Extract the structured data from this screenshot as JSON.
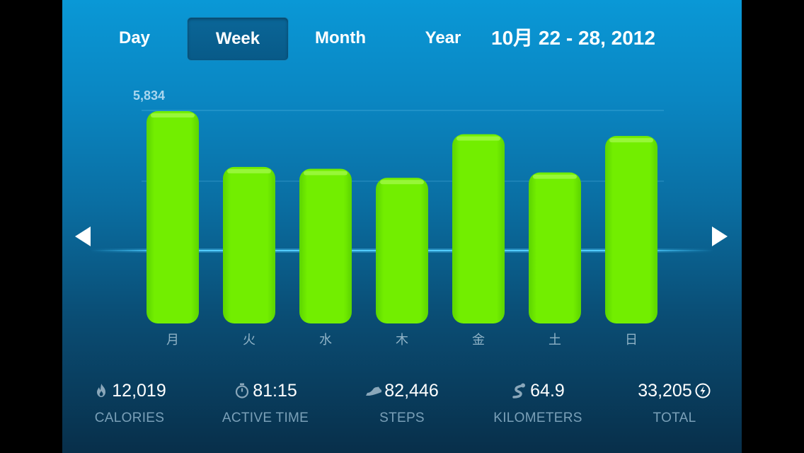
{
  "tabs": [
    {
      "label": "Day",
      "active": false
    },
    {
      "label": "Week",
      "active": true
    },
    {
      "label": "Month",
      "active": false
    },
    {
      "label": "Year",
      "active": false
    }
  ],
  "date_range": "10月 22 - 28, 2012",
  "chart_data": {
    "type": "bar",
    "categories": [
      "月",
      "火",
      "水",
      "木",
      "金",
      "土",
      "日"
    ],
    "values": [
      5834,
      4300,
      4250,
      4000,
      5200,
      4150,
      5150
    ],
    "max_label": "5,834",
    "ylim": [
      0,
      5834
    ],
    "grid": true,
    "bar_color": "#72ee00"
  },
  "stats": [
    {
      "icon": "flame-icon",
      "value": "12,019",
      "label": "CALORIES"
    },
    {
      "icon": "stopwatch-icon",
      "value": "81:15",
      "label": "ACTIVE TIME"
    },
    {
      "icon": "shoe-icon",
      "value": "82,446",
      "label": "STEPS"
    },
    {
      "icon": "route-icon",
      "value": "64.9",
      "label": "KILOMETERS"
    },
    {
      "icon": "nikefuel-icon",
      "value": "33,205",
      "label": "TOTAL"
    }
  ],
  "colors": {
    "accent_green": "#72ee00",
    "background_top": "#0a98d6",
    "background_bottom": "#082f4a",
    "label_muted": "#7aa0b8"
  }
}
